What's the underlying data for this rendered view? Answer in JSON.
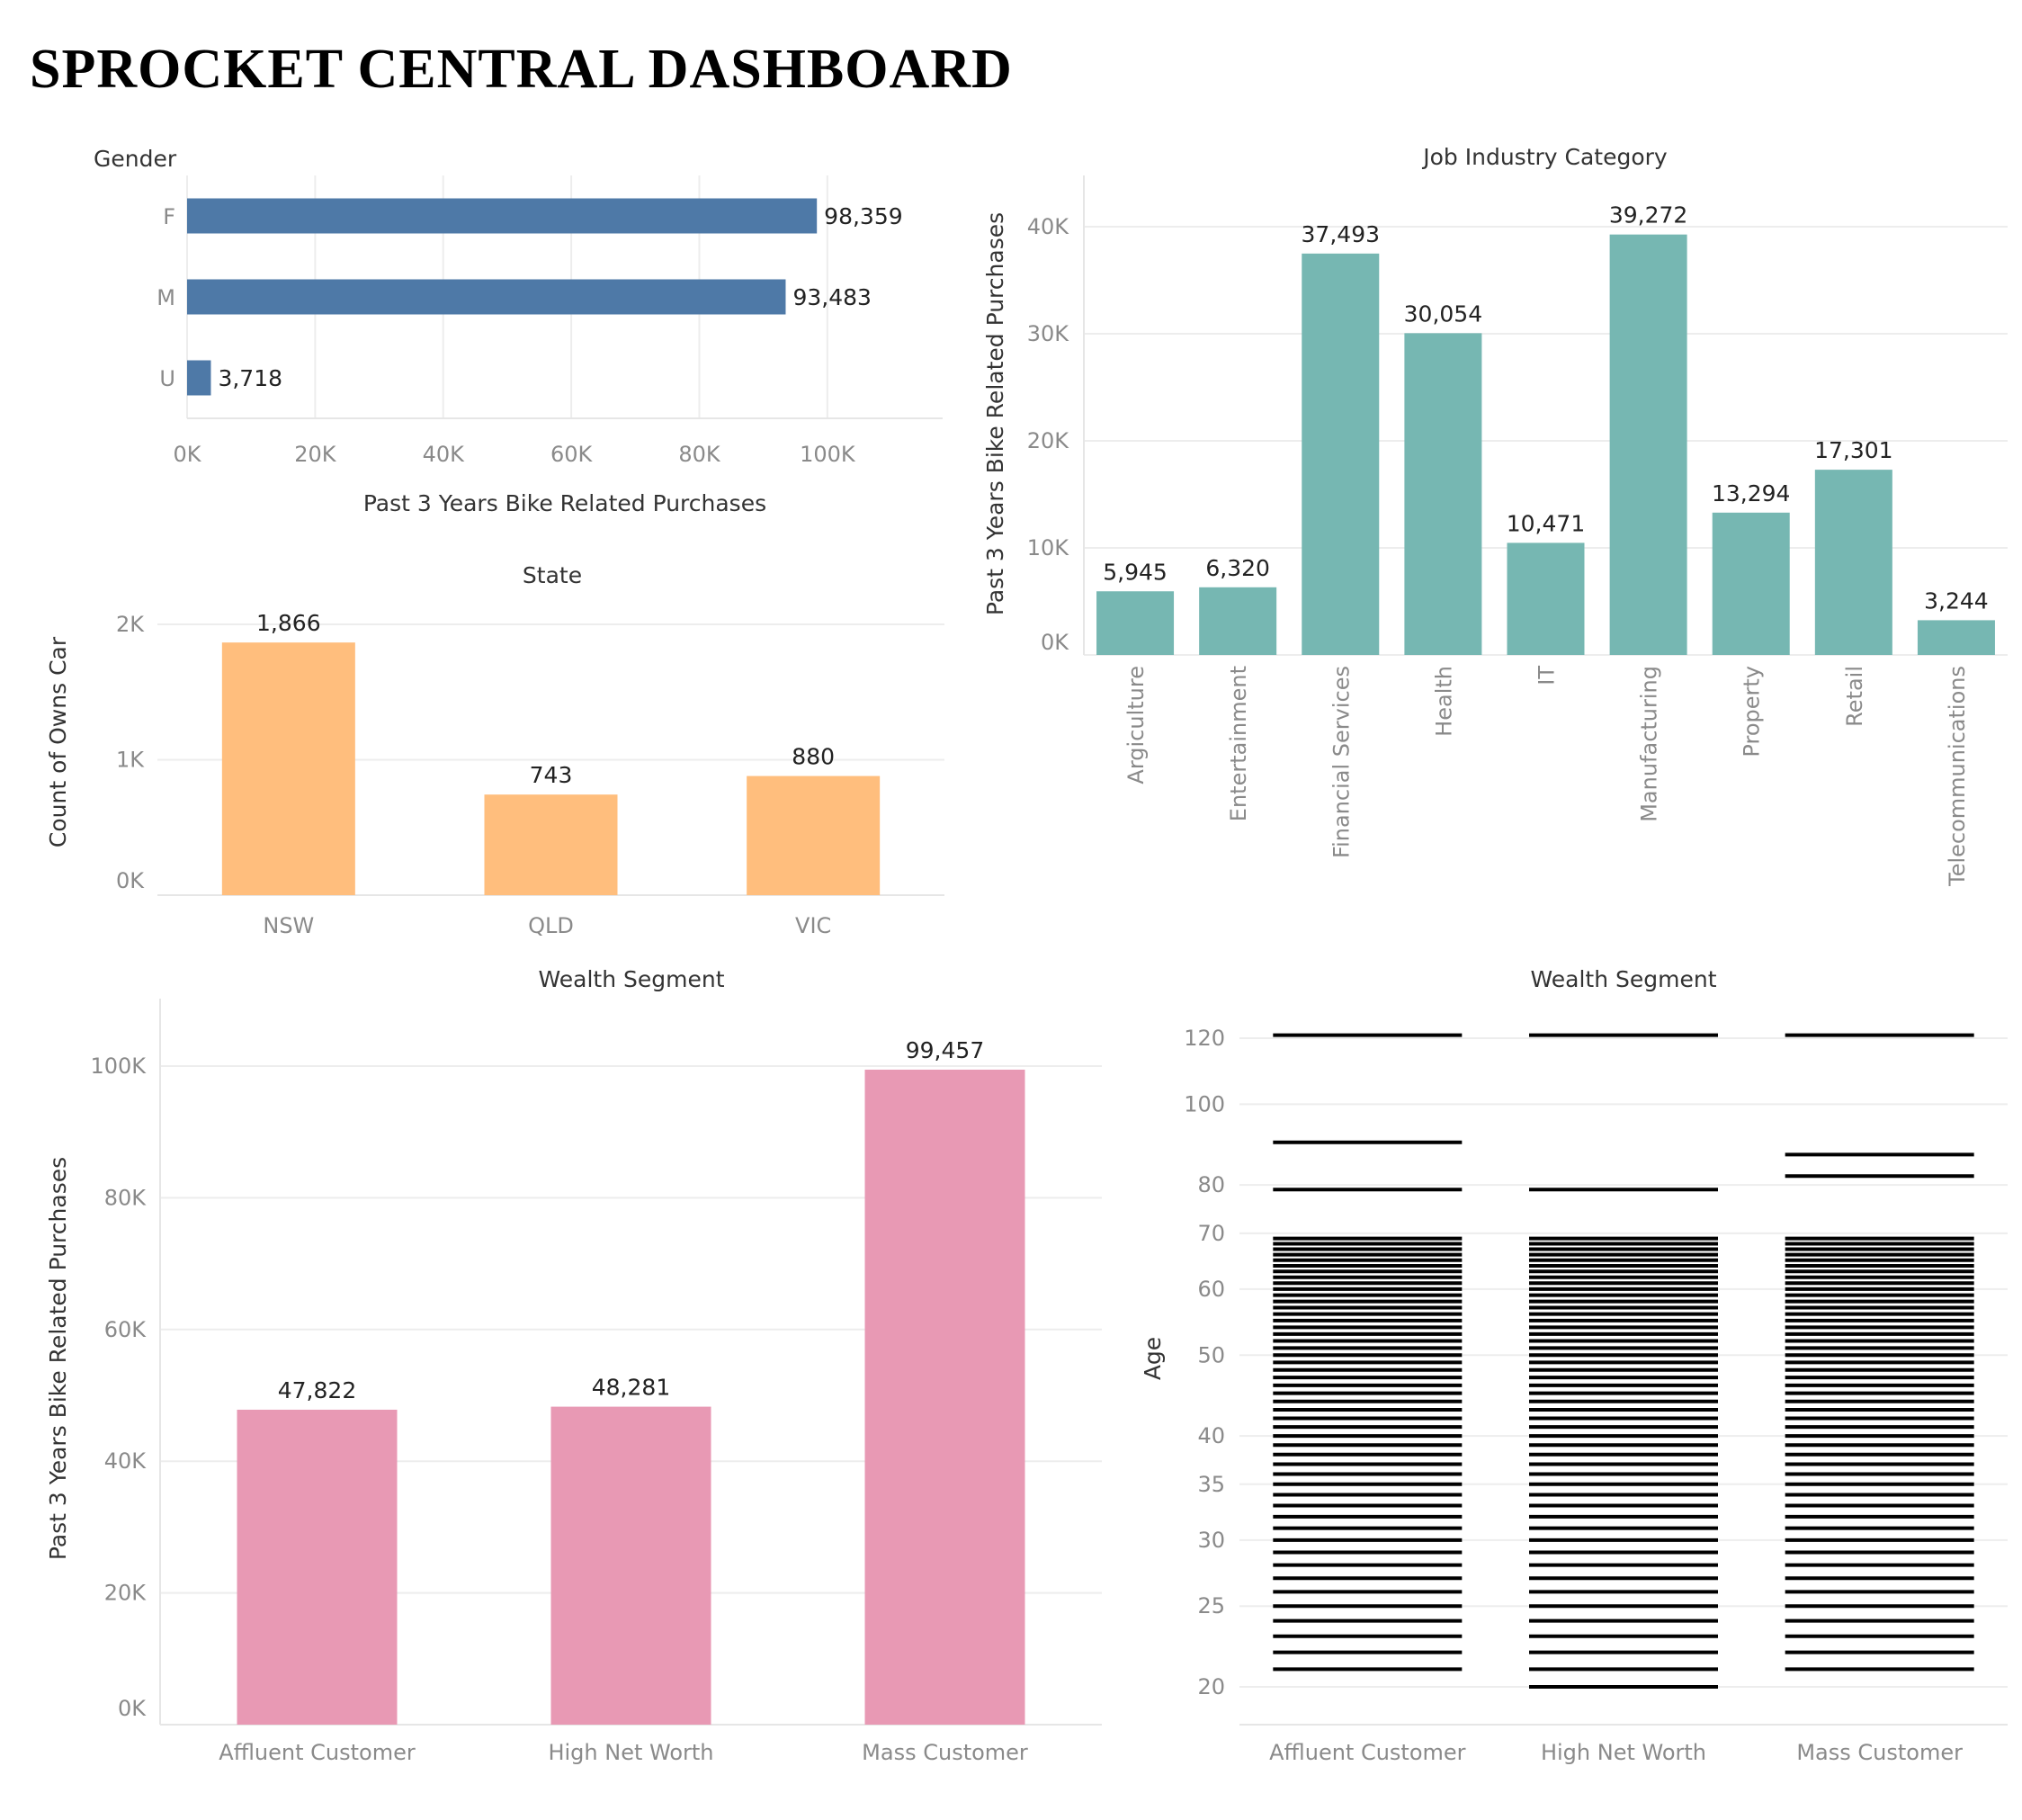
{
  "dashboard": {
    "title": "SPROCKET CENTRAL DASHBOARD"
  },
  "chart_data": [
    {
      "id": "gender",
      "type": "bar",
      "orientation": "horizontal",
      "title": "Gender",
      "xlabel": "Past 3 Years Bike Related Purchases",
      "categories": [
        "F",
        "M",
        "U"
      ],
      "values": [
        98359,
        93483,
        3718
      ],
      "value_labels": [
        "98,359",
        "93,483",
        "3,718"
      ],
      "ticks": [
        0,
        20000,
        40000,
        60000,
        80000,
        100000
      ],
      "tick_labels": [
        "0K",
        "20K",
        "40K",
        "60K",
        "80K",
        "100K"
      ],
      "xlim": [
        0,
        118000
      ],
      "color": "#4e79a7",
      "grid": true
    },
    {
      "id": "job-industry",
      "type": "bar",
      "title": "Job Industry Category",
      "ylabel": "Past 3 Years Bike Related Purchases",
      "categories": [
        "Argiculture",
        "Entertainment",
        "Financial Services",
        "Health",
        "IT",
        "Manufacturing",
        "Property",
        "Retail",
        "Telecommunications"
      ],
      "values": [
        5945,
        6320,
        37493,
        30054,
        10471,
        39272,
        13294,
        17301,
        3244
      ],
      "value_labels": [
        "5,945",
        "6,320",
        "37,493",
        "30,054",
        "10,471",
        "39,272",
        "13,294",
        "17,301",
        "3,244"
      ],
      "ticks": [
        0,
        10000,
        20000,
        30000,
        40000
      ],
      "tick_labels": [
        "0K",
        "10K",
        "20K",
        "30K",
        "40K"
      ],
      "ylim": [
        0,
        40000
      ],
      "color": "#76b7b2",
      "grid": true
    },
    {
      "id": "state",
      "type": "bar",
      "title": "State",
      "ylabel": "Count of Owns Car",
      "categories": [
        "NSW",
        "QLD",
        "VIC"
      ],
      "values": [
        1866,
        743,
        880
      ],
      "value_labels": [
        "1,866",
        "743",
        "880"
      ],
      "ticks": [
        0,
        1000,
        2000
      ],
      "tick_labels": [
        "0K",
        "1K",
        "2K"
      ],
      "ylim": [
        0,
        2000
      ],
      "color": "#ffbe7d",
      "grid": true
    },
    {
      "id": "wealth-purchases",
      "type": "bar",
      "title": "Wealth Segment",
      "ylabel": "Past 3 Years Bike Related Purchases",
      "categories": [
        "Affluent Customer",
        "High Net Worth",
        "Mass Customer"
      ],
      "values": [
        47822,
        48281,
        99457
      ],
      "value_labels": [
        "47,822",
        "48,281",
        "99,457"
      ],
      "ticks": [
        0,
        20000,
        40000,
        60000,
        80000,
        100000
      ],
      "tick_labels": [
        "0K",
        "20K",
        "40K",
        "60K",
        "80K",
        "100K"
      ],
      "ylim": [
        0,
        100000
      ],
      "color": "#e899b4",
      "grid": true
    },
    {
      "id": "wealth-age",
      "type": "scatter",
      "mark": "tick",
      "title": "Wealth Segment",
      "ylabel": "Age",
      "y_scale": "log",
      "categories": [
        "Affluent Customer",
        "High Net Worth",
        "Mass Customer"
      ],
      "ticks": [
        20,
        25,
        30,
        35,
        40,
        50,
        60,
        70,
        80,
        100,
        120
      ],
      "tick_labels": [
        "20",
        "25",
        "30",
        "35",
        "40",
        "50",
        "60",
        "70",
        "80",
        "100",
        "120"
      ],
      "series": [
        {
          "values": [
            21,
            22,
            23,
            24,
            25,
            26,
            27,
            28,
            29,
            30,
            31,
            32,
            33,
            34,
            35,
            36,
            37,
            38,
            39,
            40,
            41,
            42,
            43,
            44,
            45,
            46,
            47,
            48,
            49,
            50,
            51,
            52,
            53,
            54,
            55,
            56,
            57,
            58,
            59,
            60,
            61,
            62,
            63,
            64,
            65,
            66,
            67,
            68,
            69,
            79,
            90,
            121
          ]
        },
        {
          "values": [
            20,
            21,
            22,
            23,
            24,
            25,
            26,
            27,
            28,
            29,
            30,
            31,
            32,
            33,
            34,
            35,
            36,
            37,
            38,
            39,
            40,
            41,
            42,
            43,
            44,
            45,
            46,
            47,
            48,
            49,
            50,
            51,
            52,
            53,
            54,
            55,
            56,
            57,
            58,
            59,
            60,
            61,
            62,
            63,
            64,
            65,
            66,
            67,
            68,
            69,
            79,
            121
          ]
        },
        {
          "values": [
            21,
            22,
            23,
            24,
            25,
            26,
            27,
            28,
            29,
            30,
            31,
            32,
            33,
            34,
            35,
            36,
            37,
            38,
            39,
            40,
            41,
            42,
            43,
            44,
            45,
            46,
            47,
            48,
            49,
            50,
            51,
            52,
            53,
            54,
            55,
            56,
            57,
            58,
            59,
            60,
            61,
            62,
            63,
            64,
            65,
            66,
            67,
            68,
            69,
            82,
            87,
            121
          ]
        }
      ],
      "color": "#000000",
      "grid": true
    }
  ]
}
